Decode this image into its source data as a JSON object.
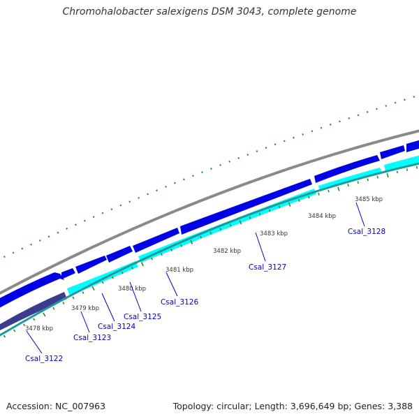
{
  "title": "Chromohalobacter salexigens DSM 3043, complete genome",
  "footer": {
    "accession": "Accession: NC_007963",
    "topology": "Topology: circular; Length: 3,696,649 bp; Genes: 3,388"
  },
  "colors": {
    "background": "#ffffff",
    "outer_ring": "#8a8a8a",
    "forward_gene": "#0000e6",
    "reverse_gene": "#00ffff",
    "reverse_gene_dark": "#3b3b8f",
    "inner_ring": "#1e9a9a",
    "ticks": "#228b22",
    "gene_label": "#0000cc",
    "tick_label": "#333333"
  },
  "ticks": [
    {
      "label": "3478 kbp"
    },
    {
      "label": "3479 kbp"
    },
    {
      "label": "3480 kbp"
    },
    {
      "label": "3481 kbp"
    },
    {
      "label": "3482 kbp"
    },
    {
      "label": "3483 kbp"
    },
    {
      "label": "3484 kbp"
    },
    {
      "label": "3485 kbp"
    }
  ],
  "genes": [
    {
      "label": "Csal_3122"
    },
    {
      "label": "Csal_3123"
    },
    {
      "label": "Csal_3124"
    },
    {
      "label": "Csal_3125"
    },
    {
      "label": "Csal_3126"
    },
    {
      "label": "Csal_3127"
    },
    {
      "label": "Csal_3128"
    }
  ]
}
